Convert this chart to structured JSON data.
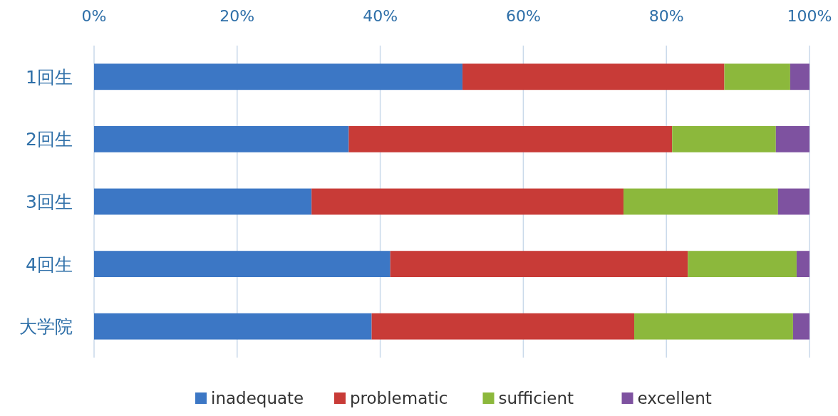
{
  "chart_data": {
    "type": "bar",
    "orientation": "horizontal",
    "stacked": true,
    "categories": [
      "1回生",
      "2回生",
      "3回生",
      "4回生",
      "大学院"
    ],
    "series": [
      {
        "name": "inadequate",
        "color": "#3c77c5",
        "values": [
          51.5,
          35.6,
          30.4,
          41.4,
          38.8
        ]
      },
      {
        "name": "problematic",
        "color": "#c83b37",
        "values": [
          36.6,
          45.2,
          43.6,
          41.6,
          36.7
        ]
      },
      {
        "name": "sufficient",
        "color": "#8cb83c",
        "values": [
          9.2,
          14.5,
          21.6,
          15.2,
          22.2
        ]
      },
      {
        "name": "excellent",
        "color": "#7e52a0",
        "values": [
          2.7,
          4.7,
          4.4,
          1.8,
          2.3
        ]
      }
    ],
    "xlim": [
      0,
      100
    ],
    "xticks": [
      {
        "value": 0,
        "label": "0%"
      },
      {
        "value": 20,
        "label": "20%"
      },
      {
        "value": 40,
        "label": "40%"
      },
      {
        "value": 60,
        "label": "60%"
      },
      {
        "value": 80,
        "label": "80%"
      },
      {
        "value": 100,
        "label": "100%"
      }
    ],
    "grid": "x",
    "legend": "bottom"
  }
}
